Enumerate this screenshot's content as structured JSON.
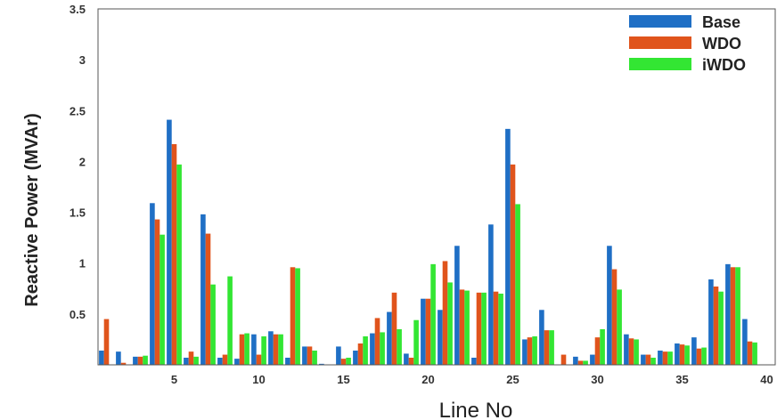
{
  "chart_data": {
    "type": "bar",
    "xlabel": "Line No",
    "ylabel": "Reactive Power (MVAr)",
    "ylim": [
      0,
      3.5
    ],
    "yticks": [
      0.5,
      1,
      1.5,
      2,
      2.5,
      3,
      3.5
    ],
    "xticks": [
      5,
      10,
      15,
      20,
      25,
      30,
      35,
      40
    ],
    "legend_position": "top-right",
    "grid": false,
    "x": [
      1,
      2,
      3,
      4,
      5,
      6,
      7,
      8,
      9,
      10,
      11,
      12,
      13,
      14,
      15,
      16,
      17,
      18,
      19,
      20,
      21,
      22,
      23,
      24,
      25,
      26,
      27,
      28,
      29,
      30,
      31,
      32,
      33,
      34,
      35,
      36,
      37,
      38,
      39,
      40
    ],
    "series": [
      {
        "name": "Base",
        "color": "#1f6fc5",
        "values": [
          0.14,
          0.13,
          0.08,
          1.59,
          2.41,
          0.07,
          1.48,
          0.07,
          0.06,
          0.3,
          0.33,
          0.07,
          0.18,
          0.01,
          0.18,
          0.14,
          0.31,
          0.52,
          0.11,
          0.65,
          0.54,
          1.17,
          0.07,
          1.38,
          2.32,
          0.25,
          0.54,
          0.0,
          0.08,
          0.1,
          1.17,
          0.3,
          0.1,
          0.14,
          0.21,
          0.27,
          0.84,
          0.99,
          0.45,
          0.0
        ]
      },
      {
        "name": "WDO",
        "color": "#e0541c",
        "values": [
          0.45,
          0.02,
          0.08,
          1.43,
          2.17,
          0.13,
          1.29,
          0.1,
          0.3,
          0.1,
          0.3,
          0.96,
          0.18,
          0.0,
          0.06,
          0.21,
          0.46,
          0.71,
          0.07,
          0.65,
          1.02,
          0.74,
          0.71,
          0.72,
          1.97,
          0.27,
          0.34,
          0.1,
          0.04,
          0.27,
          0.94,
          0.26,
          0.1,
          0.13,
          0.2,
          0.16,
          0.77,
          0.96,
          0.23,
          0.0
        ]
      },
      {
        "name": "iWDO",
        "color": "#33e633",
        "values": [
          0.0,
          0.0,
          0.09,
          1.28,
          1.97,
          0.08,
          0.79,
          0.87,
          0.31,
          0.28,
          0.3,
          0.95,
          0.14,
          0.0,
          0.07,
          0.28,
          0.32,
          0.35,
          0.44,
          0.99,
          0.81,
          0.73,
          0.71,
          0.7,
          1.58,
          0.28,
          0.34,
          0.0,
          0.04,
          0.35,
          0.74,
          0.25,
          0.07,
          0.13,
          0.19,
          0.17,
          0.72,
          0.96,
          0.22,
          0.0
        ]
      }
    ]
  }
}
